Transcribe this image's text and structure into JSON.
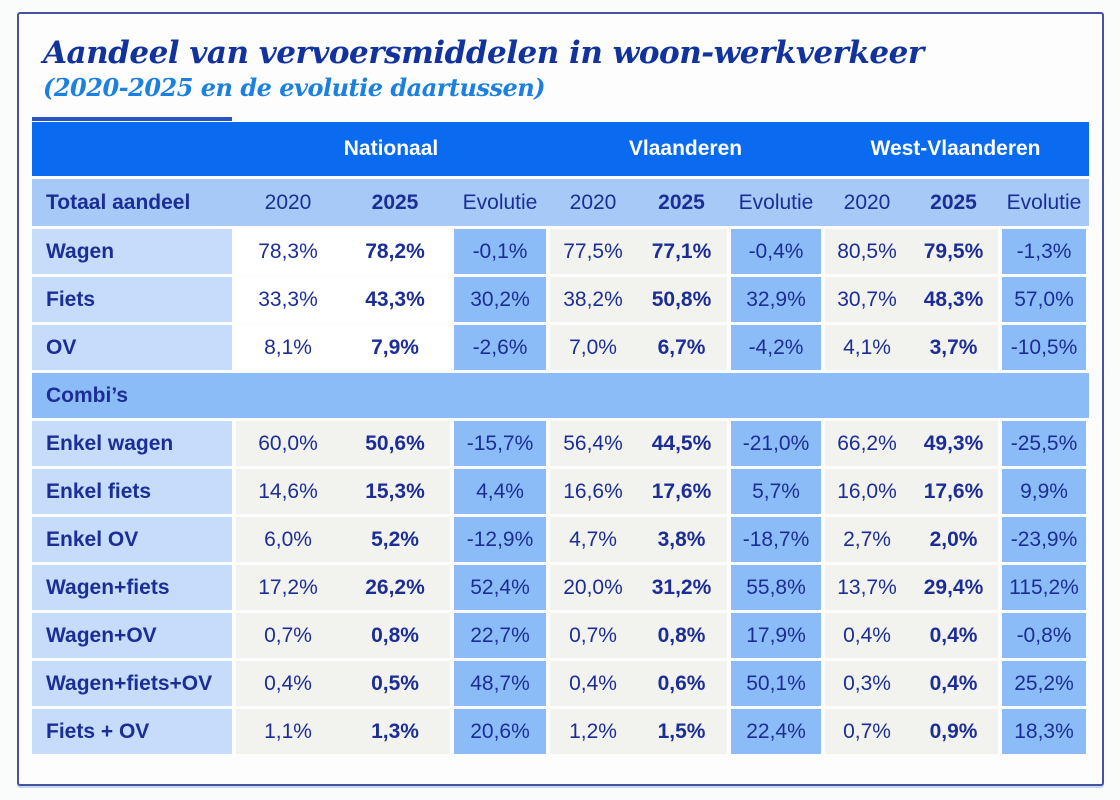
{
  "page": {
    "title": "Aandeel van vervoersmiddelen in woon-werkverkeer",
    "subtitle": "(2020-2025 en de evolutie daartussen)"
  },
  "table": {
    "region_headers": [
      "Nationaal",
      "Vlaanderen",
      "West-Vlaanderen"
    ],
    "first_column_header": "Totaal aandeel",
    "year_columns": [
      "2020",
      "2025",
      "Evolutie"
    ]
  },
  "chart_data": {
    "type": "table",
    "title": "Aandeel van vervoersmiddelen in woon-werkverkeer",
    "subtitle": "(2020-2025 en de evolutie daartussen)",
    "unit": "%",
    "decimal_style": "comma",
    "column_groups": [
      "Nationaal",
      "Vlaanderen",
      "West-Vlaanderen"
    ],
    "columns_per_group": [
      "2020",
      "2025",
      "Evolutie"
    ],
    "sections": [
      {
        "section": "Totaal aandeel",
        "rows": [
          {
            "label": "Wagen",
            "values": [
              78.3,
              78.2,
              -0.1,
              77.5,
              77.1,
              -0.4,
              80.5,
              79.5,
              -1.3
            ]
          },
          {
            "label": "Fiets",
            "values": [
              33.3,
              43.3,
              30.2,
              38.2,
              50.8,
              32.9,
              30.7,
              48.3,
              57.0
            ]
          },
          {
            "label": "OV",
            "values": [
              8.1,
              7.9,
              -2.6,
              7.0,
              6.7,
              -4.2,
              4.1,
              3.7,
              -10.5
            ]
          }
        ]
      },
      {
        "section": "Combi’s",
        "rows": [
          {
            "label": "Enkel wagen",
            "values": [
              60.0,
              50.6,
              -15.7,
              56.4,
              44.5,
              -21.0,
              66.2,
              49.3,
              -25.5
            ]
          },
          {
            "label": "Enkel fiets",
            "values": [
              14.6,
              15.3,
              4.4,
              16.6,
              17.6,
              5.7,
              16.0,
              17.6,
              9.9
            ]
          },
          {
            "label": "Enkel OV",
            "values": [
              6.0,
              5.2,
              -12.9,
              4.7,
              3.8,
              -18.7,
              2.7,
              2.0,
              -23.9
            ]
          },
          {
            "label": "Wagen+fiets",
            "values": [
              17.2,
              26.2,
              52.4,
              20.0,
              31.2,
              55.8,
              13.7,
              29.4,
              115.2
            ]
          },
          {
            "label": "Wagen+OV",
            "values": [
              0.7,
              0.8,
              22.7,
              0.7,
              0.8,
              17.9,
              0.4,
              0.4,
              -0.8
            ]
          },
          {
            "label": "Wagen+fiets+OV",
            "values": [
              0.4,
              0.5,
              48.7,
              0.4,
              0.6,
              50.1,
              0.3,
              0.4,
              25.2
            ]
          },
          {
            "label": "Fiets + OV",
            "values": [
              1.1,
              1.3,
              20.6,
              1.2,
              1.5,
              22.4,
              0.7,
              0.9,
              18.3
            ]
          }
        ]
      }
    ]
  },
  "colors": {
    "header_blue": "#0A6BF0",
    "subheader_blue": "#A6C9F8",
    "row_label_blue": "#C5DCFB",
    "evolutie_blue": "#8CBCF7",
    "gray_cell": "#F2F2EF",
    "white_cell": "#FFFFFF",
    "navy_text": "#1C2E96",
    "title_navy": "#12339E",
    "subtitle_blue": "#1B80DF",
    "border_navy": "#44549F",
    "accent_strip": "#2A52C2",
    "page_bg": "#FAFCFC",
    "header_text": "#FFFFFF"
  }
}
